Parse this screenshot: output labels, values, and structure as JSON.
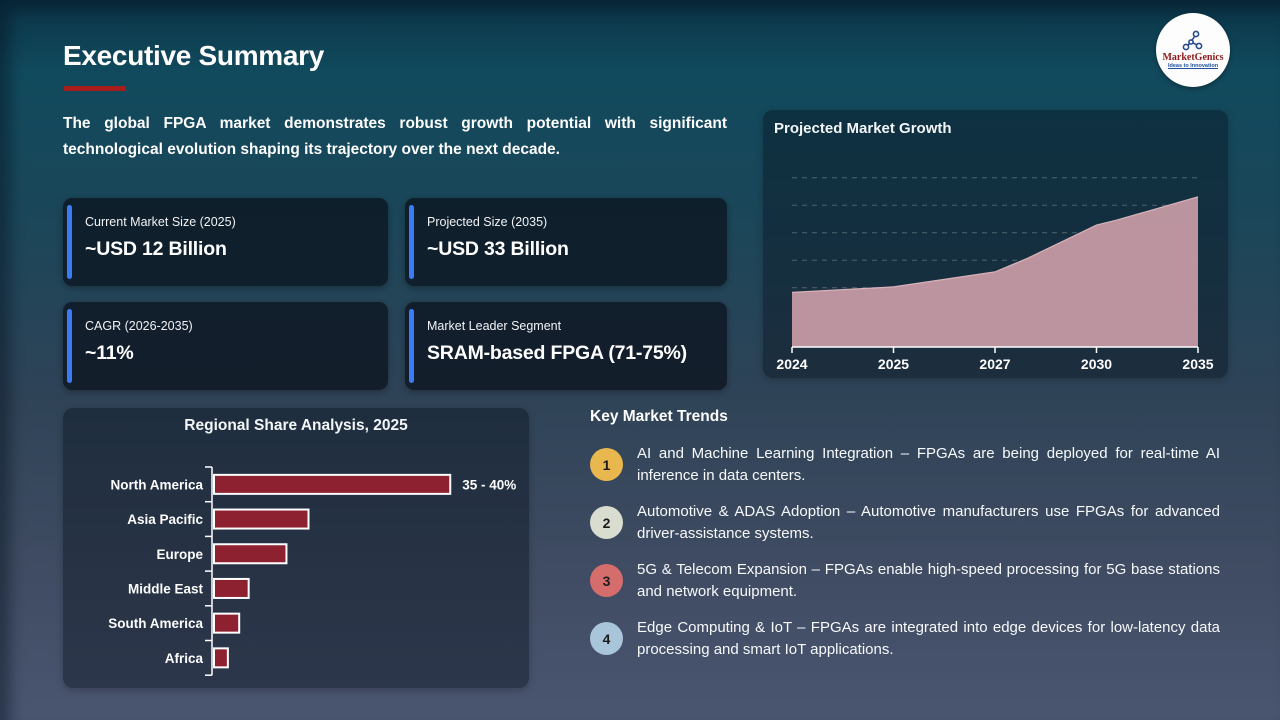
{
  "slide": {
    "title": "Executive Summary",
    "intro": "The global FPGA market demonstrates robust growth potential with significant technological evolution shaping its trajectory over the next decade."
  },
  "logo": {
    "brand": "MarketGenics",
    "tagline": "Ideas to Innovation"
  },
  "stat_cards": [
    {
      "label": "Current Market Size (2025)",
      "value": "~USD 12 Billion"
    },
    {
      "label": "Projected Size (2035)",
      "value": "~USD 33 Billion"
    },
    {
      "label": "CAGR (2026-2035)",
      "value": "~11%"
    },
    {
      "label": "Market Leader Segment",
      "value": "SRAM-based FPGA (71-75%)"
    }
  ],
  "growth_panel": {
    "title": "Projected Market Growth"
  },
  "regional_panel": {
    "title": "Regional Share Analysis, 2025"
  },
  "trends": {
    "title": "Key Market Trends",
    "items": [
      {
        "num": "1",
        "color": "#e8b74d",
        "text": "AI and Machine Learning Integration – FPGAs are being deployed for real-time AI inference in data centers."
      },
      {
        "num": "2",
        "color": "#d9ddcf",
        "text": "Automotive & ADAS Adoption – Automotive manufacturers use FPGAs for advanced driver-assistance systems."
      },
      {
        "num": "3",
        "color": "#d66d6d",
        "text": "5G & Telecom Expansion – FPGAs enable high-speed processing for 5G base stations and network equipment."
      },
      {
        "num": "4",
        "color": "#a9c5d9",
        "text": "Edge Computing & IoT – FPGAs are integrated into edge devices for low-latency data processing and smart IoT applications."
      }
    ]
  },
  "colors": {
    "underline_red": "#a81c1c",
    "accent_blue": "#3b7bf6",
    "area_pink": "#c49aa4",
    "bar_maroon": "#8e2130"
  },
  "chart_data": [
    {
      "type": "area",
      "title": "Projected Market Growth",
      "x_labels": [
        "2024",
        "2025",
        "2027",
        "2030",
        "2035"
      ],
      "values": [
        12,
        13,
        16.5,
        27,
        33
      ],
      "unit_hint": "values estimated from slide (USD Billion)",
      "ylim": [
        0,
        50
      ],
      "grid": "dashed horizontal",
      "legend": "none",
      "shape_points": [
        [
          0,
          12
        ],
        [
          0.25,
          13.2
        ],
        [
          0.5,
          16.5
        ],
        [
          0.58,
          19.5
        ],
        [
          0.75,
          26.8
        ],
        [
          0.8,
          27.9
        ],
        [
          1,
          33
        ]
      ]
    },
    {
      "type": "bar",
      "orientation": "horizontal",
      "title": "Regional Share Analysis, 2025",
      "categories": [
        "North America",
        "Asia Pacific",
        "Europe",
        "Middle East",
        "South America",
        "Africa"
      ],
      "values": [
        37.5,
        15,
        11.5,
        5.5,
        4,
        2.2
      ],
      "unit": "%",
      "xlim": [
        0,
        45
      ],
      "grid": "off",
      "annotations": [
        {
          "category": "North America",
          "label": "35 - 40%"
        }
      ]
    }
  ]
}
